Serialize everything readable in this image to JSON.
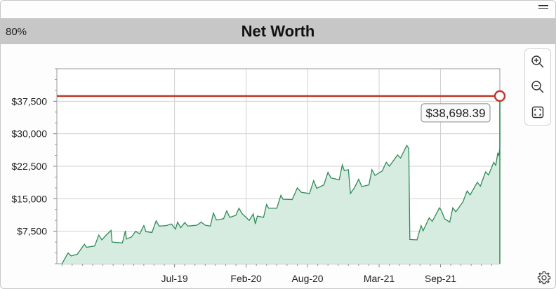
{
  "header": {
    "zoom": "80%",
    "title": "Net Worth"
  },
  "icons": {
    "menu": "hamburger-icon",
    "zoom_in": "zoom-in-icon",
    "zoom_out": "zoom-out-icon",
    "fit": "fit-screen-icon",
    "settings": "gear-icon"
  },
  "colors": {
    "line": "#2e8b57",
    "area": "#d6ece0",
    "reference_line": "#c0392b",
    "header_bg": "#c7c7c7"
  },
  "chart_data": {
    "type": "area",
    "title": "Net Worth",
    "reference_label": "$38,698.39",
    "reference_value": 38698.39,
    "y_ticks": [
      "$7,500",
      "$15,000",
      "$22,500",
      "$30,000",
      "$37,500"
    ],
    "x_ticks": [
      "Jul-19",
      "Feb-20",
      "Aug-20",
      "Mar-21",
      "Sep-21"
    ],
    "y_tick_values": [
      7500,
      15000,
      22500,
      30000,
      37500
    ],
    "x_tick_months": [
      6,
      13,
      19,
      26,
      32
    ],
    "xlim_months": [
      -5.5,
      37.8
    ],
    "ylim": [
      0,
      45000
    ],
    "grid": true,
    "points": [
      [
        -5.0,
        0
      ],
      [
        -4.4,
        2500
      ],
      [
        -4.1,
        1800
      ],
      [
        -3.5,
        2200
      ],
      [
        -2.8,
        4500
      ],
      [
        -2.6,
        3800
      ],
      [
        -1.8,
        4100
      ],
      [
        -1.4,
        6600
      ],
      [
        -1.1,
        5500
      ],
      [
        -0.6,
        6800
      ],
      [
        -0.2,
        7700
      ],
      [
        -0.1,
        5000
      ],
      [
        0.9,
        4800
      ],
      [
        1.2,
        7600
      ],
      [
        1.3,
        5700
      ],
      [
        1.8,
        6200
      ],
      [
        2.2,
        7500
      ],
      [
        2.6,
        6900
      ],
      [
        3.0,
        8800
      ],
      [
        3.2,
        7400
      ],
      [
        3.8,
        7200
      ],
      [
        4.2,
        9900
      ],
      [
        4.5,
        8700
      ],
      [
        5.2,
        8800
      ],
      [
        5.7,
        9200
      ],
      [
        6.1,
        8000
      ],
      [
        6.3,
        9600
      ],
      [
        6.6,
        8300
      ],
      [
        7.0,
        9500
      ],
      [
        7.3,
        8700
      ],
      [
        8.2,
        8900
      ],
      [
        8.6,
        9600
      ],
      [
        9.0,
        8900
      ],
      [
        9.5,
        8700
      ],
      [
        9.8,
        11700
      ],
      [
        10.1,
        10100
      ],
      [
        10.8,
        10400
      ],
      [
        11.1,
        12200
      ],
      [
        11.4,
        10700
      ],
      [
        12.0,
        11200
      ],
      [
        12.3,
        12800
      ],
      [
        12.6,
        11600
      ],
      [
        13.3,
        10000
      ],
      [
        13.7,
        11500
      ],
      [
        13.9,
        9200
      ],
      [
        14.1,
        11000
      ],
      [
        14.7,
        10700
      ],
      [
        15.0,
        13700
      ],
      [
        15.2,
        12800
      ],
      [
        16.0,
        12800
      ],
      [
        16.4,
        15800
      ],
      [
        16.6,
        14900
      ],
      [
        17.5,
        14800
      ],
      [
        18.0,
        17500
      ],
      [
        18.4,
        16500
      ],
      [
        19.2,
        16200
      ],
      [
        19.6,
        19200
      ],
      [
        19.9,
        17400
      ],
      [
        20.6,
        18200
      ],
      [
        21.0,
        21100
      ],
      [
        21.3,
        19800
      ],
      [
        22.1,
        19400
      ],
      [
        22.4,
        22800
      ],
      [
        22.6,
        21500
      ],
      [
        23.0,
        21700
      ],
      [
        23.2,
        16200
      ],
      [
        23.6,
        17600
      ],
      [
        24.0,
        19500
      ],
      [
        24.3,
        17800
      ],
      [
        25.0,
        18200
      ],
      [
        25.3,
        21700
      ],
      [
        25.6,
        20400
      ],
      [
        26.3,
        21400
      ],
      [
        26.7,
        23400
      ],
      [
        27.0,
        22500
      ],
      [
        27.8,
        25100
      ],
      [
        28.1,
        24400
      ],
      [
        28.7,
        27300
      ],
      [
        28.9,
        26600
      ],
      [
        29.0,
        5600
      ],
      [
        29.7,
        5500
      ],
      [
        30.1,
        8800
      ],
      [
        30.3,
        7600
      ],
      [
        30.9,
        10600
      ],
      [
        31.2,
        9800
      ],
      [
        31.9,
        12900
      ],
      [
        32.1,
        12200
      ],
      [
        32.4,
        10400
      ],
      [
        32.9,
        9600
      ],
      [
        33.2,
        12900
      ],
      [
        33.5,
        12000
      ],
      [
        34.2,
        14300
      ],
      [
        34.6,
        16800
      ],
      [
        34.9,
        15900
      ],
      [
        35.6,
        18800
      ],
      [
        35.9,
        17900
      ],
      [
        36.4,
        21200
      ],
      [
        36.7,
        20500
      ],
      [
        37.2,
        23400
      ],
      [
        37.4,
        22700
      ],
      [
        37.6,
        25600
      ],
      [
        37.7,
        24900
      ],
      [
        37.8,
        26700
      ]
    ]
  }
}
